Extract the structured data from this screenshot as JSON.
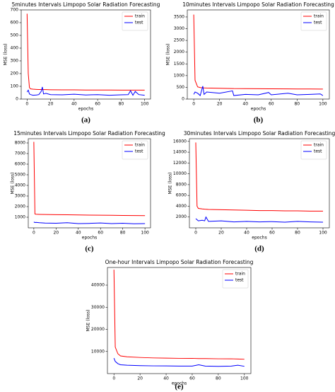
{
  "chart_data": [
    {
      "type": "line",
      "title": "5minutes Intervals Limpopo Solar Radiation Forecasting",
      "x_label": "epochs",
      "y_label": "MSE (loss)",
      "caption": "(a)",
      "x": [
        0,
        1,
        2,
        3,
        5,
        8,
        10,
        12,
        13,
        14,
        16,
        20,
        30,
        40,
        50,
        60,
        70,
        80,
        86,
        88,
        90,
        92,
        95,
        100
      ],
      "series": [
        {
          "name": "train",
          "color": "#ff0000",
          "values": [
            670,
            200,
            90,
            80,
            78,
            76,
            75,
            75,
            74,
            74,
            74,
            73,
            72,
            72,
            71,
            71,
            71,
            70,
            70,
            70,
            70,
            70,
            70,
            70
          ]
        },
        {
          "name": "test",
          "color": "#0000ff",
          "values": [
            55,
            70,
            40,
            35,
            30,
            32,
            35,
            60,
            95,
            40,
            45,
            35,
            33,
            38,
            32,
            35,
            30,
            33,
            35,
            65,
            30,
            60,
            35,
            30
          ]
        }
      ],
      "xlim": [
        -5,
        105
      ],
      "xticks": [
        0,
        20,
        40,
        60,
        80,
        100
      ],
      "ylim": [
        0,
        700
      ],
      "yticks": [
        0,
        100,
        200,
        300,
        400,
        500,
        600,
        700
      ],
      "legend": "upper right"
    },
    {
      "type": "line",
      "title": "10minutes Intervals Limpopo Solar Radiation Forecasting",
      "x_label": "epochs",
      "y_label": "MSE (loss)",
      "caption": "(b)",
      "x": [
        0,
        1,
        3,
        5,
        7,
        8,
        10,
        20,
        30,
        31,
        40,
        50,
        58,
        60,
        73,
        80,
        90,
        98,
        100
      ],
      "series": [
        {
          "name": "train",
          "color": "#ff0000",
          "values": [
            3600,
            800,
            520,
            490,
            480,
            475,
            470,
            460,
            450,
            448,
            445,
            440,
            438,
            436,
            432,
            430,
            428,
            425,
            425
          ]
        },
        {
          "name": "test",
          "color": "#0000ff",
          "values": [
            200,
            300,
            250,
            150,
            550,
            200,
            300,
            250,
            350,
            150,
            200,
            180,
            280,
            180,
            250,
            180,
            200,
            220,
            150
          ]
        }
      ],
      "xlim": [
        -5,
        105
      ],
      "xticks": [
        0,
        20,
        40,
        60,
        80,
        100
      ],
      "ylim": [
        0,
        3800
      ],
      "yticks": [
        0,
        500,
        1000,
        1500,
        2000,
        2500,
        3000,
        3500
      ],
      "legend": "upper right"
    },
    {
      "type": "line",
      "title": "15minutes Intervals Limpopo Solar Radiation Forecasting",
      "x_label": "epochs",
      "y_label": "MSE (loss)",
      "caption": "(c)",
      "x": [
        0,
        1,
        2,
        5,
        10,
        20,
        30,
        40,
        50,
        60,
        70,
        80,
        90,
        100
      ],
      "series": [
        {
          "name": "train",
          "color": "#ff0000",
          "values": [
            8100,
            1300,
            1280,
            1270,
            1260,
            1240,
            1230,
            1220,
            1200,
            1190,
            1180,
            1170,
            1160,
            1150
          ]
        },
        {
          "name": "test",
          "color": "#0000ff",
          "values": [
            550,
            500,
            520,
            480,
            450,
            430,
            480,
            400,
            420,
            460,
            400,
            430,
            380,
            400
          ]
        }
      ],
      "xlim": [
        -5,
        105
      ],
      "xticks": [
        0,
        20,
        40,
        60,
        80,
        100
      ],
      "ylim": [
        0,
        8400
      ],
      "yticks": [
        1000,
        2000,
        3000,
        4000,
        5000,
        6000,
        7000,
        8000
      ],
      "legend": "upper right"
    },
    {
      "type": "line",
      "title": "30minutes Intervals Limpopo Solar Radiation Forecasting",
      "x_label": "epochs",
      "y_label": "MSE (loss)",
      "caption": "(d)",
      "x": [
        0,
        1,
        2,
        5,
        7,
        8,
        10,
        20,
        30,
        40,
        50,
        60,
        70,
        80,
        90,
        100
      ],
      "series": [
        {
          "name": "train",
          "color": "#ff0000",
          "values": [
            15800,
            4000,
            3600,
            3500,
            3450,
            3440,
            3400,
            3350,
            3300,
            3250,
            3200,
            3200,
            3150,
            3150,
            3100,
            3100
          ]
        },
        {
          "name": "test",
          "color": "#0000ff",
          "values": [
            1700,
            1500,
            1300,
            1400,
            1300,
            2000,
            1200,
            1300,
            1100,
            1200,
            1100,
            1150,
            1050,
            1200,
            1100,
            1050
          ]
        }
      ],
      "xlim": [
        -5,
        105
      ],
      "xticks": [
        0,
        20,
        40,
        60,
        80,
        100
      ],
      "ylim": [
        0,
        16500
      ],
      "yticks": [
        2000,
        4000,
        6000,
        8000,
        10000,
        12000,
        14000,
        16000
      ],
      "legend": "upper right"
    },
    {
      "type": "line",
      "title": "One-hour Intervals Limpopo Solar Radiation Forecasting",
      "x_label": "epochs",
      "y_label": "MSE (loss)",
      "caption": "(e)",
      "x": [
        0,
        1,
        3,
        5,
        10,
        20,
        30,
        40,
        50,
        60,
        65,
        70,
        80,
        90,
        95,
        100
      ],
      "series": [
        {
          "name": "train",
          "color": "#ff0000",
          "values": [
            47000,
            12000,
            9000,
            8000,
            7600,
            7300,
            7100,
            7000,
            6900,
            6900,
            6800,
            6800,
            6700,
            6700,
            6600,
            6500
          ]
        },
        {
          "name": "test",
          "color": "#0000ff",
          "values": [
            7000,
            5500,
            4500,
            4000,
            3800,
            3600,
            3500,
            3500,
            3400,
            3400,
            4000,
            3400,
            3300,
            3400,
            3800,
            3300
          ]
        }
      ],
      "xlim": [
        -5,
        105
      ],
      "xticks": [
        0,
        20,
        40,
        60,
        80,
        100
      ],
      "ylim": [
        0,
        48000
      ],
      "yticks": [
        10000,
        20000,
        30000,
        40000
      ],
      "legend": "upper right"
    }
  ]
}
